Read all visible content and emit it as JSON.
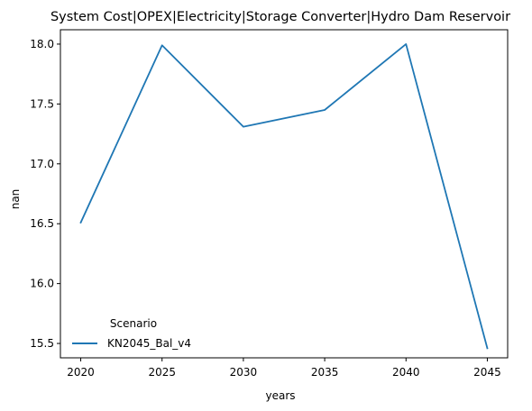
{
  "chart_data": {
    "type": "line",
    "title": "System Cost|OPEX|Electricity|Storage Converter|Hydro Dam Reservoir",
    "xlabel": "years",
    "ylabel": "nan",
    "x": [
      2020,
      2025,
      2030,
      2035,
      2040,
      2045
    ],
    "xticks": [
      "2020",
      "2025",
      "2030",
      "2035",
      "2040",
      "2045"
    ],
    "yticks": [
      "15.5",
      "16.0",
      "16.5",
      "17.0",
      "17.5",
      "18.0"
    ],
    "ytick_values": [
      15.5,
      16.0,
      16.5,
      17.0,
      17.5,
      18.0
    ],
    "xlim": [
      2018.75,
      2046.25
    ],
    "ylim": [
      15.38,
      18.12
    ],
    "series": [
      {
        "name": "KN2045_Bal_v4",
        "color": "#1f77b4",
        "values": [
          16.51,
          17.99,
          17.31,
          17.45,
          18.0,
          15.46
        ]
      }
    ],
    "legend": {
      "title": "Scenario",
      "placement": "lower-left",
      "frame": false
    },
    "grid": false
  }
}
